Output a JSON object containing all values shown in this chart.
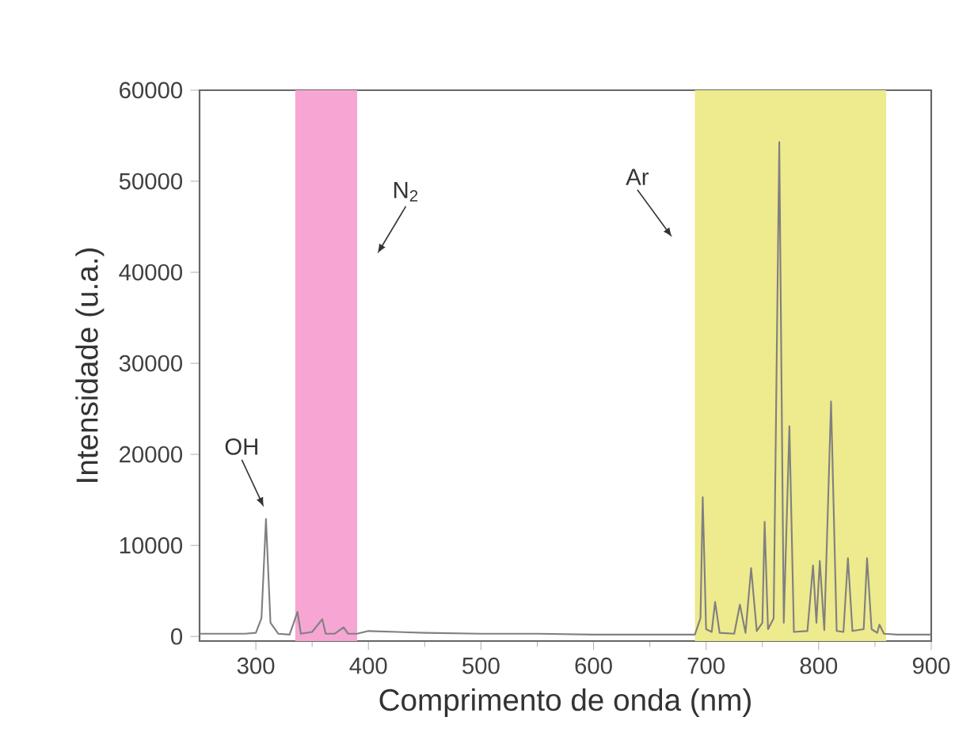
{
  "chart_data": {
    "type": "line",
    "xlabel": "Comprimento de onda (nm)",
    "ylabel": "Intensidade (u.a.)",
    "x": [
      250,
      260,
      270,
      290,
      300,
      305,
      309,
      313,
      320,
      330,
      337,
      340,
      350,
      359,
      362,
      370,
      378,
      382,
      390,
      400,
      450,
      500,
      550,
      600,
      650,
      690,
      695,
      697,
      700,
      705,
      708,
      712,
      725,
      730,
      735,
      740,
      745,
      750,
      752,
      755,
      760,
      765,
      769,
      774,
      778,
      790,
      795,
      798,
      801,
      805,
      811,
      816,
      822,
      826,
      830,
      840,
      843,
      847,
      852,
      854,
      858,
      870,
      900
    ],
    "series": [
      {
        "color": "#808080",
        "values": [
          300,
          300,
          300,
          300,
          400,
          2000,
          12900,
          1500,
          300,
          200,
          2700,
          300,
          500,
          1900,
          300,
          300,
          1000,
          300,
          300,
          600,
          400,
          300,
          300,
          200,
          200,
          200,
          2000,
          15300,
          800,
          500,
          3800,
          400,
          300,
          3500,
          400,
          7500,
          600,
          1500,
          12600,
          800,
          2000,
          54300,
          1500,
          23100,
          500,
          600,
          7800,
          1500,
          8300,
          700,
          25800,
          600,
          500,
          8600,
          600,
          800,
          8600,
          800,
          400,
          1300,
          300,
          200,
          200
        ]
      }
    ],
    "xlim": [
      250,
      900
    ],
    "ylim": [
      -500,
      60000
    ],
    "xticks": [
      300,
      400,
      500,
      600,
      700,
      800,
      900
    ],
    "yticks": [
      0,
      10000,
      20000,
      30000,
      40000,
      50000,
      60000
    ],
    "bands": [
      {
        "axis": "x",
        "from": 335,
        "to": 390,
        "color": "#f7a6d3"
      },
      {
        "axis": "x",
        "from": 690,
        "to": 860,
        "color": "#eeea8e"
      }
    ],
    "annotations": [
      "OH",
      "N$_{2}$",
      "Ar"
    ]
  }
}
